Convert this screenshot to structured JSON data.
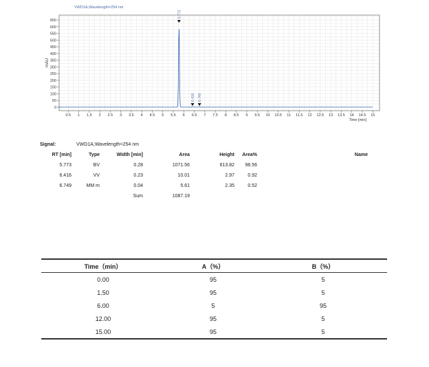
{
  "chart_data": {
    "type": "line",
    "title": "VWD1A,Wavelength=254 nm",
    "xlabel": "Time [min]",
    "ylabel": "mAU",
    "xlim": [
      0,
      15.2
    ],
    "ylim": [
      0,
      680
    ],
    "xticks": [
      "0.5",
      "1",
      "1.5",
      "2",
      "2.5",
      "3",
      "3.5",
      "4",
      "4.5",
      "5",
      "5.5",
      "6",
      "6.5",
      "7",
      "7.5",
      "8",
      "8.5",
      "9",
      "9.5",
      "10",
      "10.5",
      "11",
      "11.5",
      "12",
      "12.5",
      "13",
      "13.5",
      "14",
      "14.5",
      "15"
    ],
    "yticks": [
      "0",
      "50",
      "100",
      "150",
      "200",
      "250",
      "300",
      "350",
      "400",
      "450",
      "500",
      "550",
      "600",
      "650"
    ],
    "grid": true,
    "color": "#2b5fb0",
    "peaks": [
      {
        "rt": 5.773,
        "height": 613.82,
        "label": "5.773"
      },
      {
        "rt": 6.416,
        "height": 2.97,
        "label": "6.416"
      },
      {
        "rt": 6.749,
        "height": 2.35,
        "label": "6.749"
      }
    ]
  },
  "report": {
    "signal_label": "Signal:",
    "signal_value": "VWD1A,Wavelength=254 nm",
    "headers": [
      "RT [min]",
      "Type",
      "Width [min]",
      "Area",
      "Height",
      "Area%",
      "Name"
    ],
    "rows": [
      [
        "5.773",
        "BV",
        "0.28",
        "1071.56",
        "613.82",
        "98.56"
      ],
      [
        "6.416",
        "VV",
        "0.23",
        "10.01",
        "2.97",
        "0.92"
      ],
      [
        "6.749",
        "MM m",
        "0.04",
        "5.61",
        "2.35",
        "0.52"
      ]
    ],
    "sum_label": "Sum",
    "sum_value": "1087.19"
  },
  "gradient": {
    "headers": [
      "Time（min）",
      "A（%）",
      "B（%）"
    ],
    "rows": [
      [
        "0.00",
        "95",
        "5"
      ],
      [
        "1.50",
        "95",
        "5"
      ],
      [
        "6.00",
        "5",
        "95"
      ],
      [
        "12.00",
        "95",
        "5"
      ],
      [
        "15.00",
        "95",
        "5"
      ]
    ]
  }
}
